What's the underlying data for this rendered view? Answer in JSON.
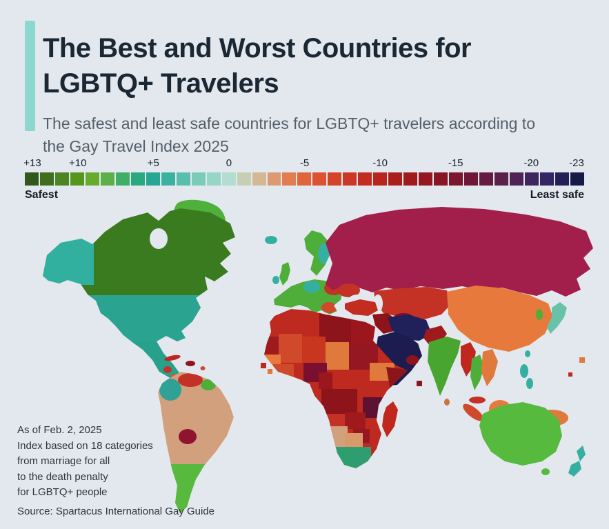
{
  "page": {
    "background": "#e2e8ee"
  },
  "header": {
    "title": "The Best and Worst Countries for LGBTQ+ Travelers",
    "subtitle": "The safest and least safe countries for LGBTQ+ travelers according to the Gay Travel Index 2025",
    "accent_color": "#8ad8cf"
  },
  "scale": {
    "safest_label": "Safest",
    "least_safe_label": "Least safe",
    "ticks": [
      {
        "text": "+13",
        "i": 0
      },
      {
        "text": "+10",
        "i": 3
      },
      {
        "text": "+5",
        "i": 8
      },
      {
        "text": "0",
        "i": 13
      },
      {
        "text": "-5",
        "i": 18
      },
      {
        "text": "-10",
        "i": 23
      },
      {
        "text": "-15",
        "i": 28
      },
      {
        "text": "-20",
        "i": 33
      },
      {
        "text": "-23",
        "i": 36
      }
    ],
    "colors": [
      "#30591c",
      "#3f6f1e",
      "#4c8522",
      "#55961f",
      "#66ab2e",
      "#5cb04a",
      "#3faf68",
      "#2ca881",
      "#27a693",
      "#3bb2a0",
      "#58bfae",
      "#79ccba",
      "#97d6c6",
      "#b4ddd1",
      "#c6cfb4",
      "#d3b894",
      "#dd9a70",
      "#e17d50",
      "#e2643a",
      "#dd5230",
      "#d54429",
      "#cc3824",
      "#c22d20",
      "#b7251d",
      "#ac1e1b",
      "#a01a1d",
      "#941722",
      "#881627",
      "#7c162e",
      "#701737",
      "#651b41",
      "#59204b",
      "#4d2455",
      "#40265e",
      "#332566",
      "#232057",
      "#161a47"
    ]
  },
  "footnote": {
    "lines": [
      "As of Feb. 2, 2025",
      "Index based on 18 categories",
      "from marriage for all",
      "to the death penalty",
      "for LGBTQ+ people"
    ]
  },
  "source": "Source: Spartacus International Gay Guide",
  "map": {
    "regions": {
      "canada": "#3b7b20",
      "hudson_bay": "#e2e8ee",
      "alaska": "#31b0a0",
      "greenland": "#4fb13c",
      "usa": "#2ba391",
      "mexico": "#27a08c",
      "central_america_1": "#c43226",
      "central_america_2": "#d65a2e",
      "cuba": "#c0281f",
      "hispaniola": "#8e141b",
      "caribbean_dot": "#d0492b",
      "south_america_base": "#d2a07c",
      "colombia": "#2fa195",
      "venezuela": "#c33226",
      "guyana": "#4fae3a",
      "bolivia": "#8e1430",
      "chile": "#3f9c31",
      "argentina": "#58b93f",
      "uruguay": "#58b93f",
      "iceland": "#35b0a0",
      "uk": "#4fae3a",
      "ireland": "#35b0a0",
      "scandinavia": "#4fae3a",
      "finland": "#35b0a0",
      "europe_base": "#4fae3a",
      "central_europe": "#35b0a0",
      "eastern_europe": "#c43226",
      "balkans": "#d0492b",
      "ukraine": "#c43226",
      "russia": "#a21e4b",
      "black_sea": "#e2e8ee",
      "caspian_sea": "#e2e8ee",
      "kazakhstan": "#c43226",
      "turkmenistan": "#7a1030",
      "china_mongolia": "#e8793c",
      "korea": "#4fae3a",
      "japan": "#68c2a8",
      "taiwan": "#35b0a0",
      "turkey": "#c22d20",
      "iraq_levant": "#8e141b",
      "iran": "#20205a",
      "pakistan": "#9e1a1c",
      "saudi_peninsula": "#1c1c50",
      "oman": "#8e141b",
      "india": "#48a52f",
      "sri_lanka": "#d0703d",
      "myanmar": "#c0281f",
      "thailand": "#4fae3a",
      "indochina": "#e07a3c",
      "malaysia": "#c43226",
      "sumatra": "#d0492b",
      "borneo": "#e8793c",
      "java": "#c0281f",
      "sulawesi": "#d0492b",
      "new_guinea": "#e07a3c",
      "philippines": "#35b0a0",
      "africa_base": "#bf2a20",
      "libya": "#8e141b",
      "egypt": "#9c161d",
      "mauritania": "#9e1a1c",
      "mali": "#d0492b",
      "niger": "#c8361f",
      "chad": "#e07a3c",
      "sudan": "#951721",
      "west_africa": "#e8793c",
      "ghana_ivory": "#d0492b",
      "nigeria": "#7a1030",
      "cameroon": "#9c161d",
      "ethiopia": "#e07a3c",
      "somalia": "#8c1519",
      "drc": "#8e141b",
      "tanzania": "#5c1230",
      "angola": "#c43226",
      "zambia": "#a01a1d",
      "zimbabwe": "#951721",
      "namibia": "#d2a07c",
      "botswana": "#d89a6a",
      "south_africa": "#2f9e6e",
      "madagascar": "#c0281f",
      "australia": "#56ba3e",
      "tasmania": "#56ba3e",
      "new_zealand": "#35b0a0",
      "island_square_red": "#c0281f",
      "island_square_darkred": "#8e141b",
      "island_square_orange": "#e07a3c"
    }
  },
  "chart_data": {
    "type": "heatmap",
    "subtype": "choropleth-world-map",
    "title": "The Best and Worst Countries for LGBTQ+ Travelers",
    "index_name": "Gay Travel Index 2025",
    "scale": {
      "max": 13,
      "min": -23,
      "tick_labels": [
        "+13",
        "+10",
        "+5",
        "0",
        "-5",
        "-10",
        "-15",
        "-20",
        "-23"
      ],
      "best_label": "Safest",
      "worst_label": "Least safe",
      "color_ramp": "dark green (+13) → green → teal → pale (0) → tan → orange → red → dark red → maroon → purple → dark navy (-23)"
    },
    "values_estimated_from_map_colors": true,
    "observations": [
      {
        "region": "Canada",
        "approx_index": 12
      },
      {
        "region": "Greenland",
        "approx_index": 8
      },
      {
        "region": "United States",
        "approx_index": 4
      },
      {
        "region": "Mexico",
        "approx_index": 4
      },
      {
        "region": "Colombia",
        "approx_index": 4
      },
      {
        "region": "Venezuela",
        "approx_index": -8
      },
      {
        "region": "Brazil / Peru",
        "approx_index": -2
      },
      {
        "region": "Bolivia",
        "approx_index": -12
      },
      {
        "region": "Argentina / Chile / Uruguay",
        "approx_index": 8
      },
      {
        "region": "UK / Spain / Scandinavia",
        "approx_index": 9
      },
      {
        "region": "Central Europe",
        "approx_index": 5
      },
      {
        "region": "Eastern Europe / Balkans",
        "approx_index": -6
      },
      {
        "region": "Russia",
        "approx_index": -16
      },
      {
        "region": "Kazakhstan",
        "approx_index": -8
      },
      {
        "region": "Turkmenistan",
        "approx_index": -18
      },
      {
        "region": "China / Mongolia",
        "approx_index": -4
      },
      {
        "region": "Japan",
        "approx_index": 3
      },
      {
        "region": "India",
        "approx_index": 8
      },
      {
        "region": "Thailand",
        "approx_index": 8
      },
      {
        "region": "Myanmar / Indonesia / Malaysia",
        "approx_index": -9
      },
      {
        "region": "Turkey",
        "approx_index": -9
      },
      {
        "region": "Iraq / Levant",
        "approx_index": -13
      },
      {
        "region": "Iran",
        "approx_index": -22
      },
      {
        "region": "Saudi Arabia / Yemen / UAE",
        "approx_index": -22
      },
      {
        "region": "Pakistan",
        "approx_index": -11
      },
      {
        "region": "North Africa (Libya, Egypt)",
        "approx_index": -14
      },
      {
        "region": "Nigeria",
        "approx_index": -17
      },
      {
        "region": "Somalia / DR Congo / Tanzania",
        "approx_index": -15
      },
      {
        "region": "Namibia / Botswana",
        "approx_index": -2
      },
      {
        "region": "South Africa",
        "approx_index": 6
      },
      {
        "region": "Australia",
        "approx_index": 9
      },
      {
        "region": "New Zealand",
        "approx_index": 5
      }
    ]
  }
}
